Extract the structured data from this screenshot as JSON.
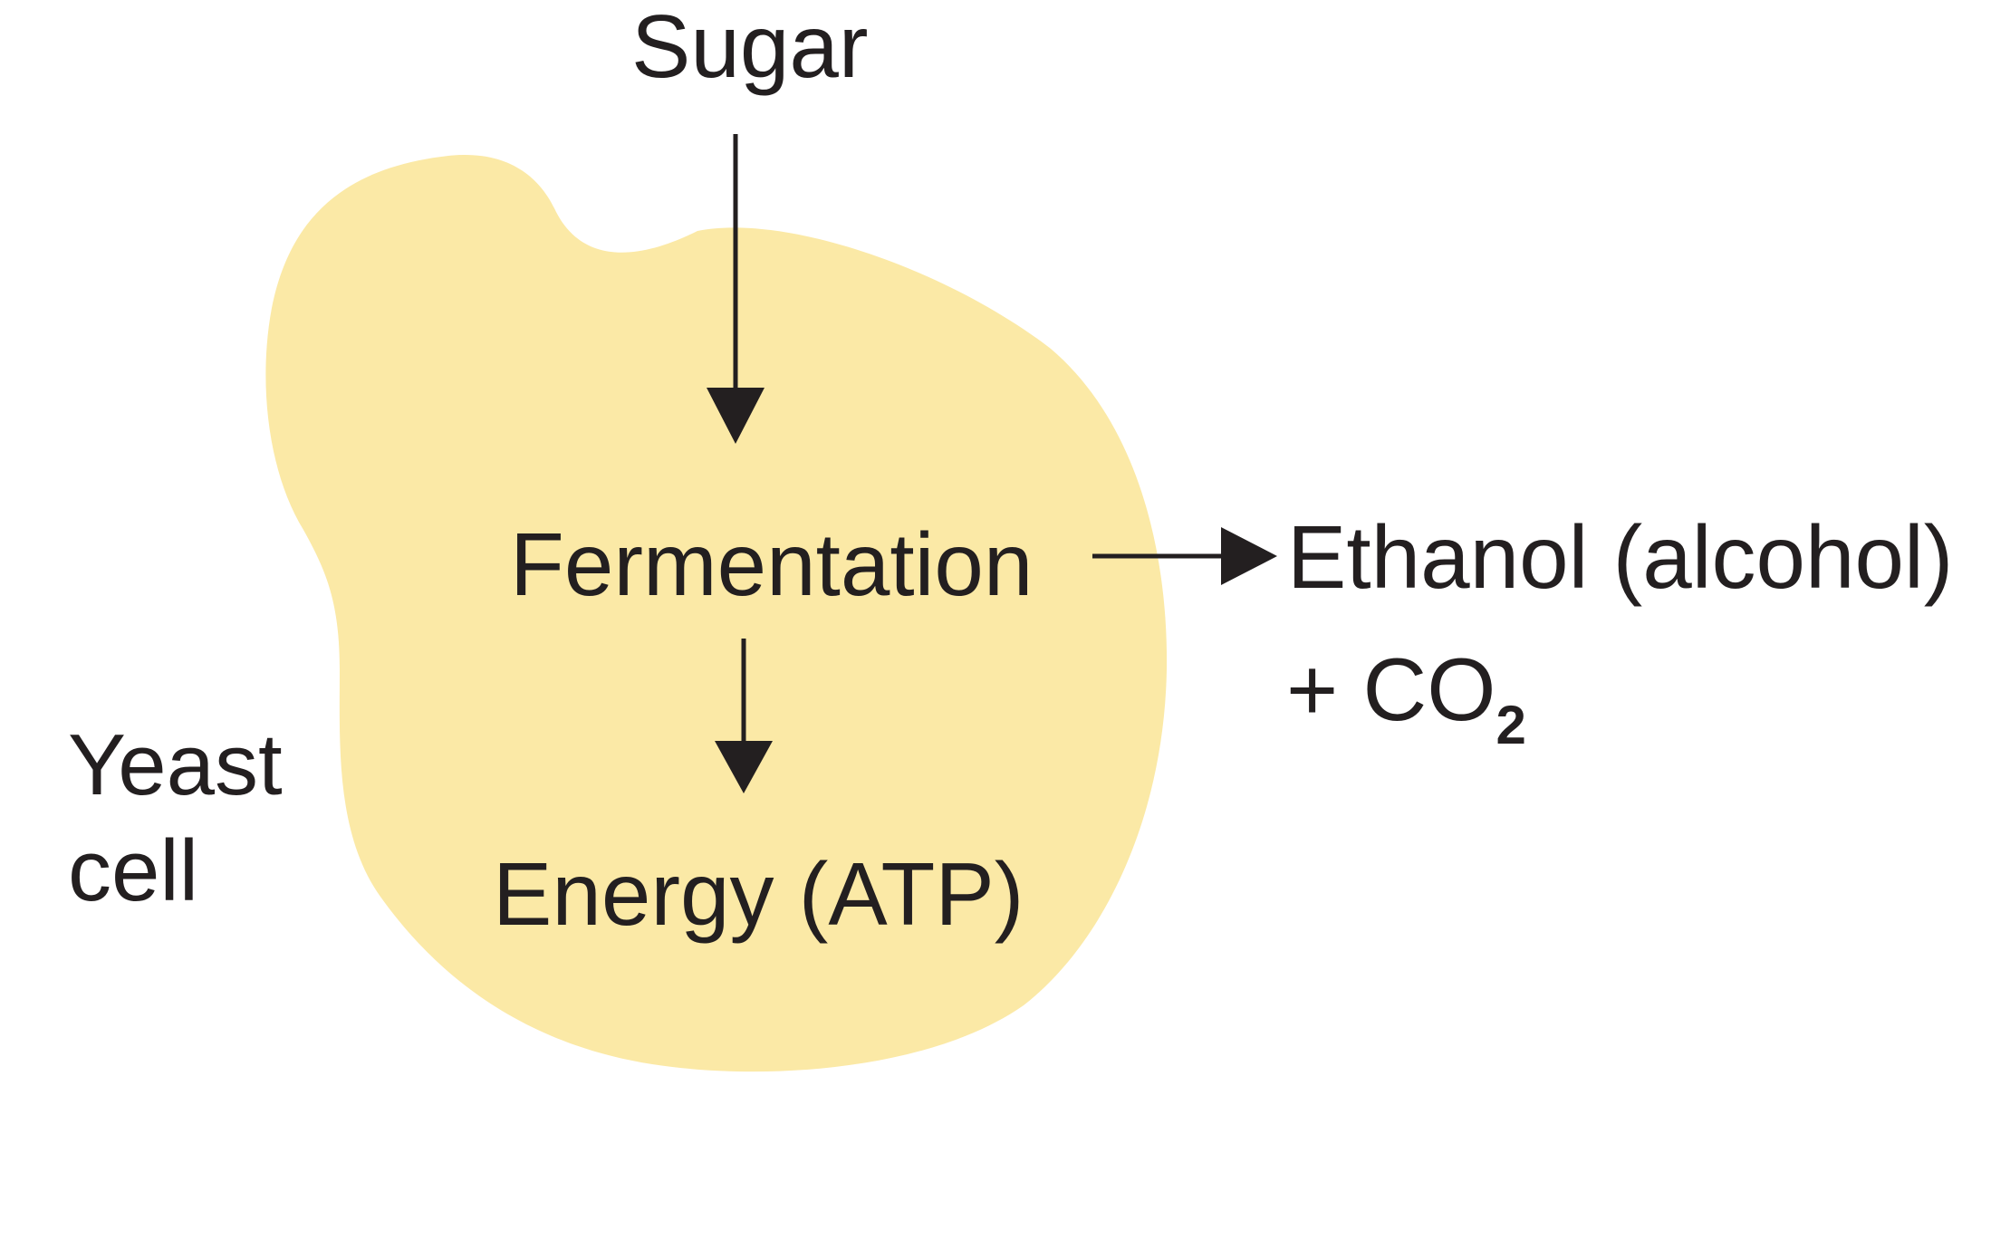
{
  "colors": {
    "cell_fill": "#fbe9a6",
    "ink": "#231f20",
    "background": "#ffffff"
  },
  "diagram": {
    "input_label": "Sugar",
    "process_label": "Fermentation",
    "output_label": "Energy (ATP)",
    "byproduct_label": "Ethanol (alcohol)",
    "byproduct_extra_prefix": "+ CO",
    "byproduct_extra_subscript": "2",
    "cell_label_line1": "Yeast",
    "cell_label_line2": "cell"
  }
}
